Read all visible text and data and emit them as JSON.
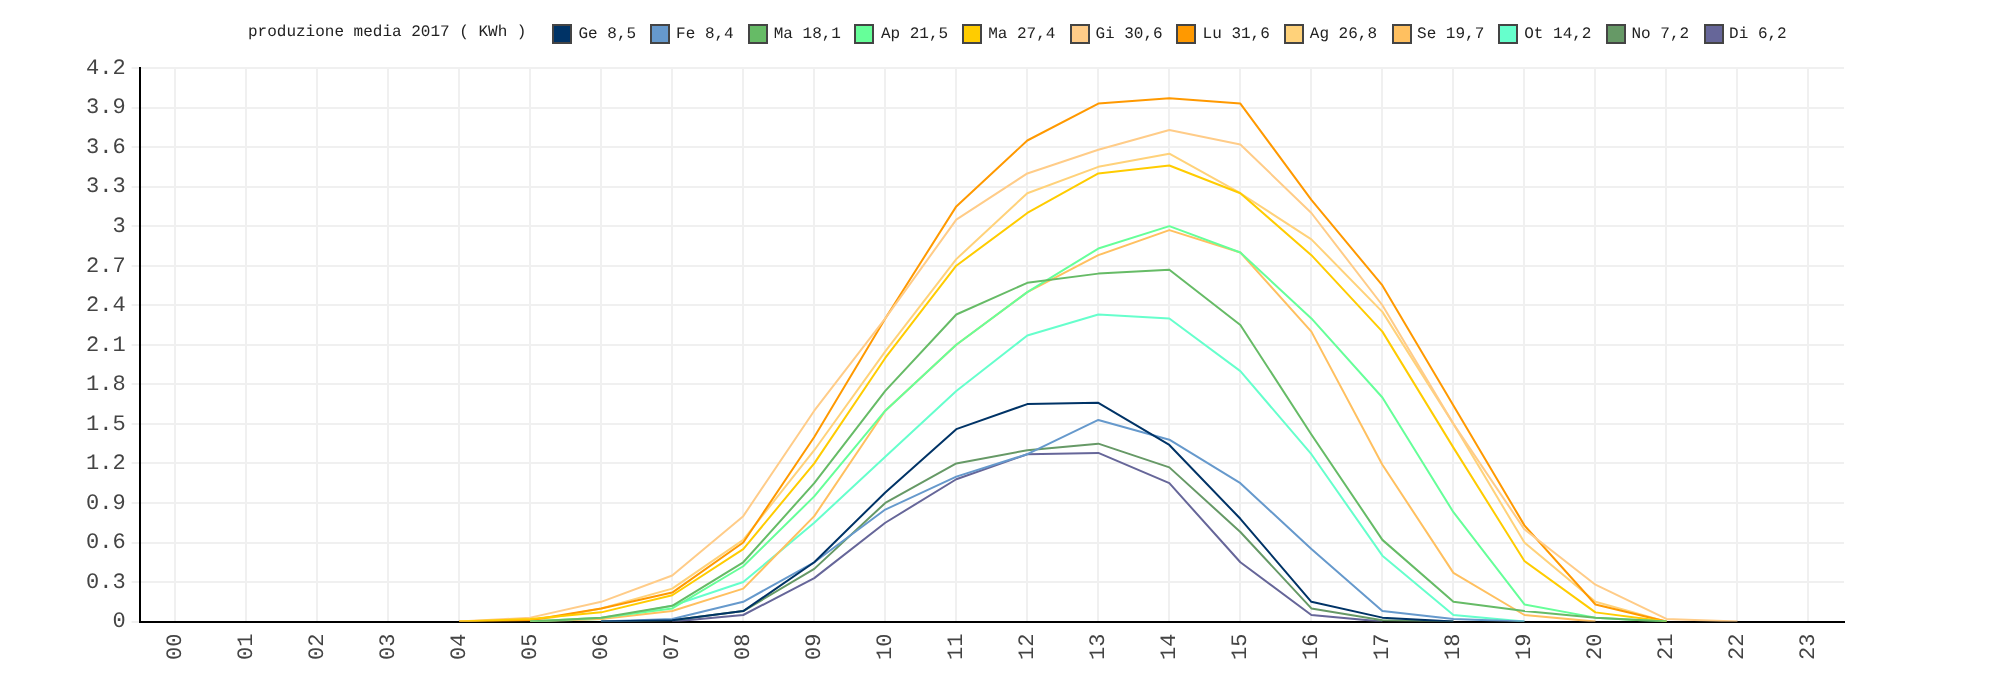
{
  "chart_data": {
    "type": "line",
    "legend_title": "produzione media 2017 ( KWh )",
    "legend": "top",
    "grid": true,
    "marker": "none",
    "line_style": "solid",
    "categories": [
      "00",
      "01",
      "02",
      "03",
      "04",
      "05",
      "06",
      "07",
      "08",
      "09",
      "10",
      "11",
      "12",
      "13",
      "14",
      "15",
      "16",
      "17",
      "18",
      "19",
      "20",
      "21",
      "22",
      "23"
    ],
    "ylim": [
      0,
      4.2
    ],
    "yticks": [
      0,
      0.3,
      0.6,
      0.9,
      1.2,
      1.5,
      1.8,
      2.1,
      2.4,
      2.7,
      3,
      3.3,
      3.6,
      3.9,
      4.2
    ],
    "series": [
      {
        "name": "Ge 8,5",
        "color": "#003366",
        "values": [
          null,
          null,
          null,
          null,
          null,
          null,
          0,
          0.01,
          0.08,
          0.45,
          0.98,
          1.46,
          1.65,
          1.66,
          1.34,
          0.78,
          0.15,
          0.03,
          0,
          null,
          null,
          null,
          null,
          null
        ]
      },
      {
        "name": "Fe 8,4",
        "color": "#6699cc",
        "values": [
          null,
          null,
          null,
          null,
          null,
          null,
          0,
          0.02,
          0.15,
          0.45,
          0.85,
          1.1,
          1.27,
          1.53,
          1.38,
          1.05,
          0.55,
          0.08,
          0.02,
          0,
          null,
          null,
          null,
          null
        ]
      },
      {
        "name": "Ma 18,1",
        "color": "#66bb66",
        "values": [
          null,
          null,
          null,
          null,
          null,
          0,
          0.03,
          0.12,
          0.45,
          1.05,
          1.75,
          2.33,
          2.57,
          2.64,
          2.67,
          2.25,
          1.42,
          0.62,
          0.15,
          0.08,
          0.03,
          0,
          null,
          null
        ]
      },
      {
        "name": "Ap 21,5",
        "color": "#66ff99",
        "values": [
          null,
          null,
          null,
          null,
          null,
          0,
          0.03,
          0.1,
          0.42,
          0.95,
          1.6,
          2.1,
          2.5,
          2.83,
          3.0,
          2.8,
          2.3,
          1.7,
          0.83,
          0.13,
          0.03,
          0,
          null,
          null
        ]
      },
      {
        "name": "Ma 27,4",
        "color": "#ffcc00",
        "values": [
          null,
          null,
          null,
          null,
          0,
          0.02,
          0.07,
          0.2,
          0.55,
          1.2,
          2.0,
          2.7,
          3.1,
          3.4,
          3.46,
          3.25,
          2.78,
          2.2,
          1.32,
          0.46,
          0.07,
          0,
          null,
          null
        ]
      },
      {
        "name": "Gi 30,6",
        "color": "#ffcc88",
        "values": [
          null,
          null,
          null,
          null,
          0,
          0.03,
          0.15,
          0.35,
          0.8,
          1.6,
          2.3,
          3.05,
          3.4,
          3.58,
          3.73,
          3.62,
          3.1,
          2.4,
          1.5,
          0.7,
          0.28,
          0.02,
          0,
          null
        ]
      },
      {
        "name": "Lu 31,6",
        "color": "#ff9900",
        "values": [
          null,
          null,
          null,
          null,
          0,
          0.01,
          0.1,
          0.22,
          0.6,
          1.4,
          2.3,
          3.15,
          3.65,
          3.93,
          3.97,
          3.93,
          3.2,
          2.55,
          1.64,
          0.73,
          0.13,
          0,
          null,
          null
        ]
      },
      {
        "name": "Ag 26,8",
        "color": "#ffd27a",
        "values": [
          null,
          null,
          null,
          null,
          null,
          0,
          0.1,
          0.25,
          0.62,
          1.3,
          2.05,
          2.75,
          3.25,
          3.45,
          3.55,
          3.25,
          2.9,
          2.35,
          1.5,
          0.6,
          0.15,
          0,
          null,
          null
        ]
      },
      {
        "name": "Se 19,7",
        "color": "#ffc060",
        "values": [
          null,
          null,
          null,
          null,
          null,
          0,
          0.02,
          0.08,
          0.25,
          0.8,
          1.6,
          2.1,
          2.5,
          2.78,
          2.97,
          2.8,
          2.2,
          1.19,
          0.37,
          0.05,
          0,
          null,
          null,
          null
        ]
      },
      {
        "name": "Ot 14,2",
        "color": "#66ffcc",
        "values": [
          null,
          null,
          null,
          null,
          null,
          0,
          0.02,
          0.12,
          0.3,
          0.75,
          1.25,
          1.75,
          2.17,
          2.33,
          2.3,
          1.9,
          1.27,
          0.5,
          0.05,
          0,
          null,
          null,
          null,
          null
        ]
      },
      {
        "name": "No 7,2",
        "color": "#669966",
        "values": [
          null,
          null,
          null,
          null,
          null,
          null,
          0,
          0.01,
          0.08,
          0.4,
          0.9,
          1.2,
          1.3,
          1.35,
          1.17,
          0.68,
          0.1,
          0.01,
          0,
          null,
          null,
          null,
          null,
          null
        ]
      },
      {
        "name": "Di 6,2",
        "color": "#666699",
        "values": [
          null,
          null,
          null,
          null,
          null,
          null,
          null,
          0,
          0.05,
          0.33,
          0.75,
          1.08,
          1.27,
          1.28,
          1.05,
          0.45,
          0.05,
          0,
          null,
          null,
          null,
          null,
          null,
          null
        ]
      }
    ]
  }
}
